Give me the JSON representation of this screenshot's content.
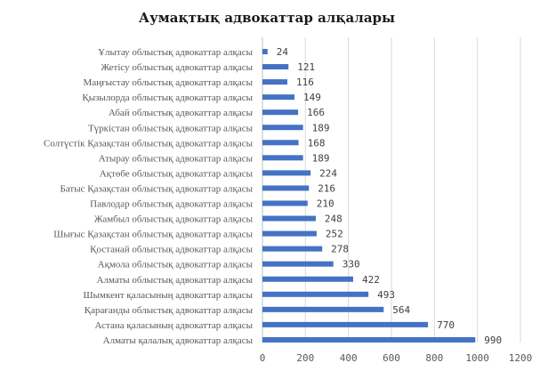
{
  "colors": {
    "bar": "#4472c4",
    "background": "#ffffff"
  },
  "chart_data": {
    "type": "bar",
    "orientation": "horizontal",
    "title": "Аумақтық адвокаттар алқалары",
    "xlabel": "",
    "ylabel": "",
    "xlim": [
      0,
      1200
    ],
    "x_ticks": [
      0,
      200,
      400,
      600,
      800,
      1000,
      1200
    ],
    "grid": true,
    "legend": "none",
    "categories": [
      "Ұлытау облыстық адвокаттар алқасы",
      "Жетісу облыстық адвокаттар алқасы",
      "Маңғыстау облыстық адвокаттар алқасы",
      "Қызылорда облыстық адвокаттар алқасы",
      "Абай облыстық адвокаттар алқасы",
      "Түркістан облыстық адвокаттар алқасы",
      "Солтүстік Қазақстан облыстық адвокаттар алқасы",
      "Атырау облыстық адвокаттар алқасы",
      "Ақтөбе облыстық адвокаттар алқасы",
      "Батыс Қазақстан облыстық адвокаттар алқасы",
      "Павлодар облыстық адвокаттар алқасы",
      "Жамбыл облыстық адвокаттар алқасы",
      "Шығыс Қазақстан облыстық адвокаттар алқасы",
      "Қостанай облыстық адвокаттар алқасы",
      "Ақмола облыстық адвокаттар алқасы",
      "Алматы облыстық адвокаттар алқасы",
      "Шымкент қаласының адвокаттар алқасы",
      "Қарағанды облыстық адвокаттар алқасы",
      "Астана қаласының адвокаттар алқасы",
      "Алматы қалалық адвокаттар алқасы"
    ],
    "values": [
      24,
      121,
      116,
      149,
      166,
      189,
      168,
      189,
      224,
      216,
      210,
      248,
      252,
      278,
      330,
      422,
      493,
      564,
      770,
      990
    ]
  }
}
